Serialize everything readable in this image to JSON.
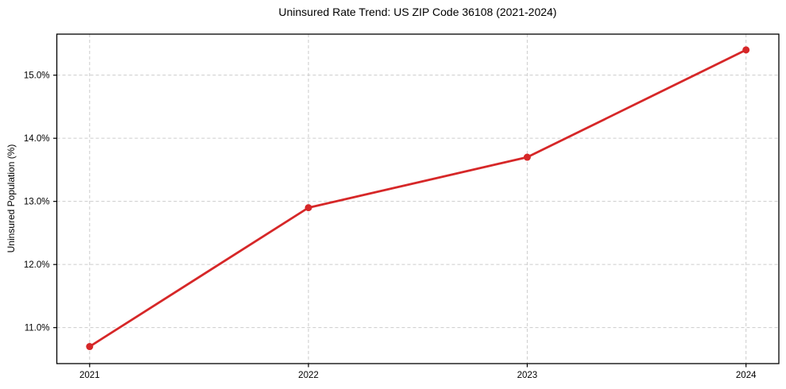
{
  "chart_data": {
    "type": "line",
    "title": "Uninsured Rate Trend: US ZIP Code 36108 (2021-2024)",
    "xlabel": "",
    "ylabel": "Uninsured Population (%)",
    "x": [
      2021,
      2022,
      2023,
      2024
    ],
    "values": [
      10.7,
      12.9,
      13.7,
      15.4
    ],
    "xlim": [
      2020.85,
      2024.15
    ],
    "ylim": [
      10.43,
      15.65
    ],
    "xticks": {
      "values": [
        2021,
        2022,
        2023,
        2024
      ],
      "labels": [
        "2021",
        "2022",
        "2023",
        "2024"
      ]
    },
    "yticks": {
      "values": [
        11.0,
        12.0,
        13.0,
        14.0,
        15.0
      ],
      "labels": [
        "11.0%",
        "12.0%",
        "13.0%",
        "14.0%",
        "15.0%"
      ]
    },
    "grid": true,
    "grid_style": "dashed",
    "legend": false,
    "colors": {
      "line": "#d62728",
      "marker": "#d62728",
      "grid": "#cccccc",
      "spine": "#000000",
      "text": "#000000",
      "background": "#ffffff"
    }
  }
}
